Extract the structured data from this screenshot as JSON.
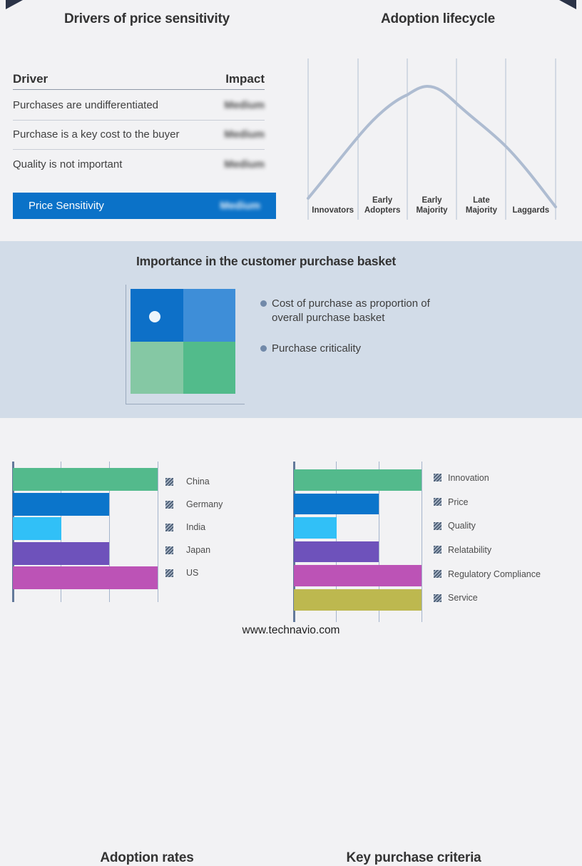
{
  "page": {
    "footer_link": "www.technavio.com",
    "background": "#f2f2f4",
    "band_background": "#d2dce8",
    "accent_blue": "#0b72c8"
  },
  "drivers_table": {
    "title": "Drivers of price sensitivity",
    "col_driver": "Driver",
    "col_impact": "Impact",
    "impact_values_obscured": "blurred in source image",
    "rows": [
      {
        "driver": "Purchases are undifferentiated",
        "impact": "Medium"
      },
      {
        "driver": "Purchase is a key cost to the buyer",
        "impact": "Medium"
      },
      {
        "driver": "Quality is not important",
        "impact": "Medium"
      }
    ],
    "highlight": {
      "driver": "Price Sensitivity",
      "impact": "Medium"
    }
  },
  "basket": {
    "title": "Importance in the customer purchase basket",
    "bullets": [
      "Cost of purchase as proportion of overall purchase basket",
      "Purchase criticality"
    ],
    "quadrants": {
      "top_left": "#0d70c8",
      "top_right": "#3e8ed8",
      "bottom_left": "#85c8a4",
      "bottom_right": "#52bb8b"
    },
    "dot_color": "#ecf5fb"
  },
  "chart_data": [
    {
      "id": "adoption_lifecycle",
      "type": "line",
      "title": "Adoption lifecycle",
      "categories": [
        [
          "Innovators"
        ],
        [
          "Early",
          "Adopters"
        ],
        [
          "Early",
          "Majority"
        ],
        [
          "Late",
          "Majority"
        ],
        [
          "Laggards"
        ]
      ],
      "shape": "bell curve rising from Innovators, peaking at Early Majority, falling to Laggards",
      "curve_color": "#aebcd1",
      "grid": "vertical segment dividers only, no numeric axes"
    },
    {
      "id": "adoption_rates",
      "type": "bar",
      "orientation": "horizontal",
      "title": "Adoption rates",
      "categories": [
        "China",
        "Germany",
        "India",
        "Japan",
        "US"
      ],
      "values": [
        3,
        2,
        1,
        2,
        3
      ],
      "value_range": [
        0,
        3
      ],
      "units": "gridline thirds (no numeric axis labels shown)",
      "grid": true,
      "legend_position": "right",
      "colors": [
        "#53ba8c",
        "#0b75cb",
        "#31c0f7",
        "#6e52bb",
        "#bc53b6"
      ]
    },
    {
      "id": "key_purchase_criteria",
      "type": "bar",
      "orientation": "horizontal",
      "title": "Key purchase criteria",
      "categories": [
        "Innovation",
        "Price",
        "Quality",
        "Relatability",
        "Regulatory Compliance",
        "Service"
      ],
      "values": [
        3,
        2,
        1,
        2,
        3,
        3
      ],
      "value_range": [
        0,
        3
      ],
      "units": "gridline thirds (no numeric axis labels shown)",
      "grid": true,
      "legend_position": "right",
      "colors": [
        "#53ba8c",
        "#0b75cb",
        "#31c0f7",
        "#6e52bb",
        "#bc53b6",
        "#bdb84f"
      ]
    }
  ]
}
